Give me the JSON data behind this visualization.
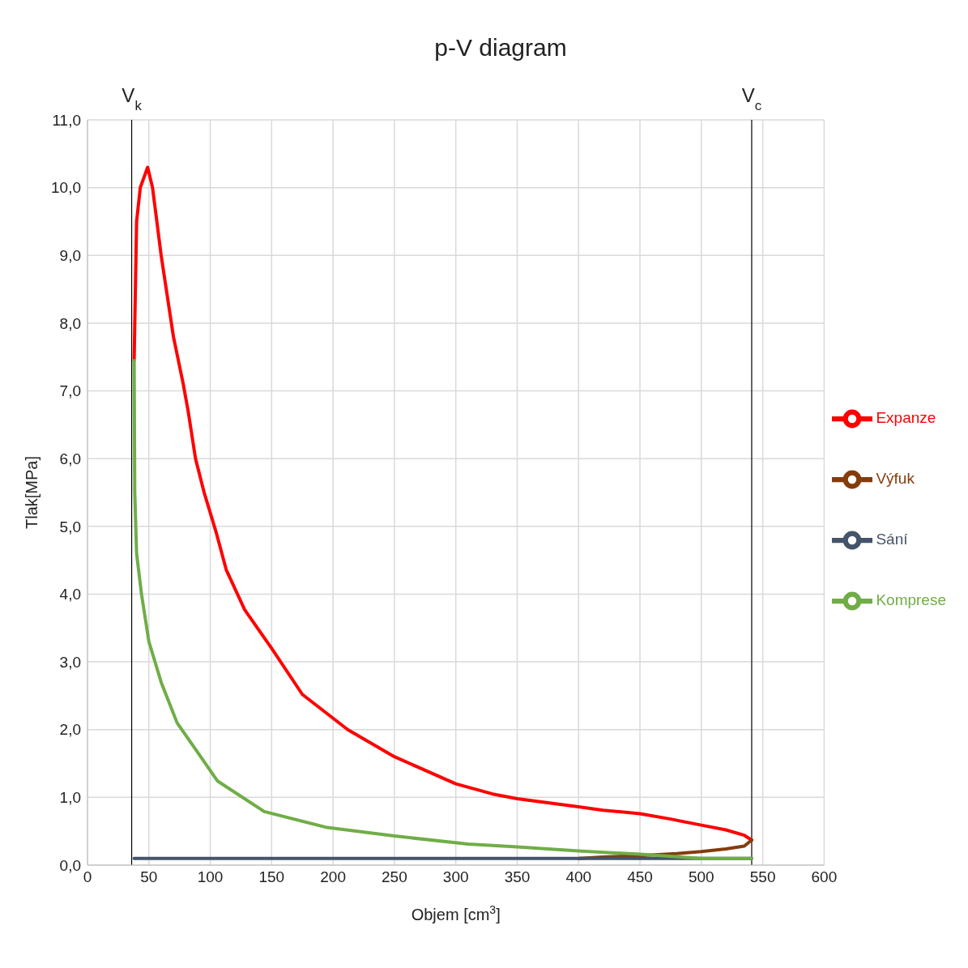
{
  "chart_data": {
    "type": "line",
    "title": "p-V diagram",
    "xlabel": "Objem [cm$^{3}$]",
    "ylabel": "Tlak[MPa]",
    "xlim": [
      0,
      600
    ],
    "xticks": [
      0,
      50,
      100,
      150,
      200,
      250,
      300,
      350,
      400,
      450,
      500,
      550,
      600
    ],
    "ylim": [
      0,
      11
    ],
    "yticks": [
      {
        "value": 0,
        "label": "0,0"
      },
      {
        "value": 1,
        "label": "1,0"
      },
      {
        "value": 2,
        "label": "2,0"
      },
      {
        "value": 3,
        "label": "3,0"
      },
      {
        "value": 4,
        "label": "4,0"
      },
      {
        "value": 5,
        "label": "5,0"
      },
      {
        "value": 6,
        "label": "6,0"
      },
      {
        "value": 7,
        "label": "7,0"
      },
      {
        "value": 8,
        "label": "8,0"
      },
      {
        "value": 9,
        "label": "9,0"
      },
      {
        "value": 10,
        "label": "10,0"
      },
      {
        "value": 11,
        "label": "11,0"
      }
    ],
    "grid": true,
    "legend": "right",
    "marker": "none",
    "line_style": "solid",
    "ref_lines": [
      {
        "axis": "x",
        "value": 36,
        "label": "V$_{k}$",
        "color": "#000000"
      },
      {
        "axis": "x",
        "value": 541,
        "label": "V$_{c}$",
        "color": "#000000"
      }
    ],
    "series": [
      {
        "name": "Expanze",
        "color": "#ff0000",
        "x": [
          38,
          40,
          43,
          49,
          53,
          60,
          70,
          78,
          82,
          88,
          95,
          105,
          113,
          128,
          150,
          175,
          212,
          250,
          300,
          330,
          350,
          400,
          420,
          450,
          475,
          500,
          520,
          535,
          541
        ],
        "values": [
          7.45,
          9.5,
          10.0,
          10.3,
          10.0,
          9.0,
          7.8,
          7.1,
          6.7,
          6.0,
          5.5,
          4.9,
          4.36,
          3.77,
          3.2,
          2.52,
          2.0,
          1.6,
          1.2,
          1.05,
          0.98,
          0.86,
          0.81,
          0.76,
          0.68,
          0.59,
          0.52,
          0.44,
          0.37
        ]
      },
      {
        "name": "Výfuk",
        "color": "#843c0c",
        "x": [
          541,
          535,
          520,
          500,
          480,
          450,
          420,
          400
        ],
        "values": [
          0.37,
          0.28,
          0.24,
          0.2,
          0.17,
          0.14,
          0.12,
          0.1
        ]
      },
      {
        "name": "Sání",
        "color": "#44546a",
        "x": [
          38,
          541
        ],
        "values": [
          0.1,
          0.1
        ]
      },
      {
        "name": "Komprese",
        "color": "#70ad47",
        "x": [
          541,
          500,
          450,
          400,
          350,
          310,
          250,
          194,
          144,
          106,
          73,
          60,
          50,
          44,
          40,
          38.5,
          38
        ],
        "values": [
          0.1,
          0.1,
          0.16,
          0.21,
          0.27,
          0.31,
          0.43,
          0.56,
          0.79,
          1.24,
          2.1,
          2.7,
          3.3,
          4.0,
          4.6,
          5.5,
          7.45
        ]
      }
    ]
  }
}
